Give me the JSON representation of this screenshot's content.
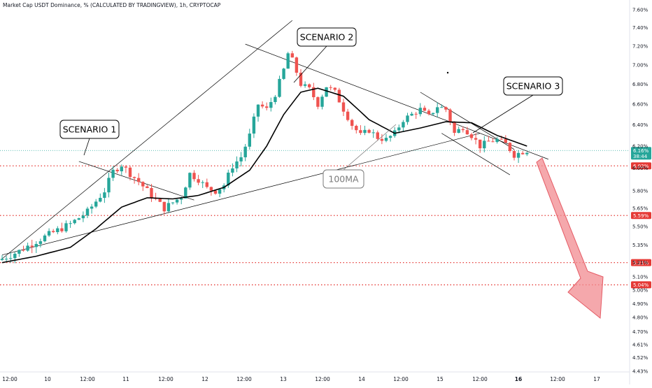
{
  "title": "Market Cap USDT Dominance, % (CALCULATED BY TRADINGVIEW), 1h, CRYPTOCAP",
  "colors": {
    "up": "#26a69a",
    "down": "#ef5350",
    "ma": "#000000",
    "level_line": "#e53935",
    "arrow": "#f28b90",
    "current_badge": "#26a69a"
  },
  "chart_data": {
    "type": "candlestick",
    "yaxis": {
      "scale": "log",
      "ylim": [
        4.4,
        7.7
      ],
      "ticks": [
        "7.60%",
        "7.40%",
        "7.20%",
        "7.00%",
        "6.80%",
        "6.60%",
        "6.40%",
        "6.20%",
        "6.00%",
        "5.80%",
        "5.65%",
        "5.50%",
        "5.35%",
        "5.21%",
        "5.10%",
        "5.00%",
        "4.90%",
        "4.80%",
        "4.70%",
        "4.61%",
        "4.52%",
        "4.43%"
      ]
    },
    "xaxis": {
      "ticks": [
        "12:00",
        "10",
        "12:00",
        "11",
        "12:00",
        "12",
        "12:00",
        "13",
        "12:00",
        "14",
        "12:00",
        "15",
        "12:00",
        "16",
        "12:00",
        "17"
      ]
    },
    "levels": [
      {
        "label": "6.02%",
        "value": 6.02
      },
      {
        "label": "5.59%",
        "value": 5.59
      },
      {
        "label": "5.21%",
        "value": 5.21
      },
      {
        "label": "5.04%",
        "value": 5.04
      }
    ],
    "current": {
      "price": "6.16%",
      "countdown": "38:44",
      "value": 6.16
    },
    "annotations": [
      {
        "name": "scenario-1",
        "text": "SCENARIO 1"
      },
      {
        "name": "scenario-2",
        "text": "SCENARIO 2"
      },
      {
        "name": "scenario-3",
        "text": "SCENARIO 3"
      },
      {
        "name": "ma-label",
        "text": "100MA"
      }
    ],
    "price_path": [
      [
        0,
        5.24
      ],
      [
        4,
        5.3
      ],
      [
        8,
        5.38
      ],
      [
        12,
        5.45
      ],
      [
        16,
        5.52
      ],
      [
        20,
        5.62
      ],
      [
        24,
        5.8
      ],
      [
        26,
        5.97
      ],
      [
        28,
        6.03
      ],
      [
        30,
        5.95
      ],
      [
        32,
        5.88
      ],
      [
        34,
        5.8
      ],
      [
        36,
        5.72
      ],
      [
        38,
        5.65
      ],
      [
        40,
        5.7
      ],
      [
        42,
        5.75
      ],
      [
        44,
        5.95
      ],
      [
        46,
        5.9
      ],
      [
        48,
        5.82
      ],
      [
        50,
        5.8
      ],
      [
        52,
        5.85
      ],
      [
        54,
        6.02
      ],
      [
        56,
        6.1
      ],
      [
        58,
        6.3
      ],
      [
        60,
        6.6
      ],
      [
        62,
        6.55
      ],
      [
        64,
        6.7
      ],
      [
        66,
        6.95
      ],
      [
        67,
        7.12
      ],
      [
        68,
        7.05
      ],
      [
        70,
        6.8
      ],
      [
        72,
        6.75
      ],
      [
        74,
        6.6
      ],
      [
        76,
        6.78
      ],
      [
        78,
        6.72
      ],
      [
        80,
        6.55
      ],
      [
        82,
        6.4
      ],
      [
        84,
        6.3
      ],
      [
        86,
        6.35
      ],
      [
        88,
        6.28
      ],
      [
        90,
        6.26
      ],
      [
        92,
        6.32
      ],
      [
        94,
        6.45
      ],
      [
        96,
        6.5
      ],
      [
        98,
        6.55
      ],
      [
        100,
        6.48
      ],
      [
        102,
        6.58
      ],
      [
        104,
        6.55
      ],
      [
        106,
        6.32
      ],
      [
        108,
        6.38
      ],
      [
        110,
        6.3
      ],
      [
        112,
        6.2
      ],
      [
        114,
        6.24
      ],
      [
        116,
        6.26
      ],
      [
        118,
        6.22
      ],
      [
        120,
        6.12
      ],
      [
        122,
        6.15
      ],
      [
        123,
        6.16
      ]
    ],
    "ma_path": [
      [
        0,
        5.21
      ],
      [
        8,
        5.26
      ],
      [
        16,
        5.33
      ],
      [
        22,
        5.48
      ],
      [
        28,
        5.66
      ],
      [
        34,
        5.74
      ],
      [
        40,
        5.73
      ],
      [
        46,
        5.76
      ],
      [
        52,
        5.83
      ],
      [
        58,
        5.98
      ],
      [
        62,
        6.2
      ],
      [
        66,
        6.5
      ],
      [
        70,
        6.72
      ],
      [
        74,
        6.76
      ],
      [
        80,
        6.68
      ],
      [
        86,
        6.45
      ],
      [
        92,
        6.32
      ],
      [
        98,
        6.37
      ],
      [
        104,
        6.43
      ],
      [
        110,
        6.42
      ],
      [
        116,
        6.3
      ],
      [
        123,
        6.2
      ]
    ]
  }
}
